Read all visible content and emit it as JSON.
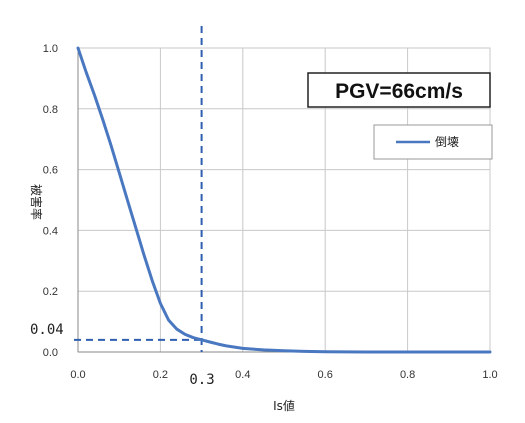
{
  "chart_data": {
    "type": "line",
    "title": "",
    "xlabel": "Is値",
    "ylabel": "被害率",
    "xlim": [
      0.0,
      1.0
    ],
    "ylim": [
      0.0,
      1.0
    ],
    "x_ticks": [
      "0.0",
      "0.2",
      "0.4",
      "0.6",
      "0.8",
      "1.0"
    ],
    "y_ticks": [
      "0.0",
      "0.2",
      "0.4",
      "0.6",
      "0.8",
      "1.0"
    ],
    "grid": true,
    "legend_position": "top-right",
    "series": [
      {
        "name": "倒壊",
        "color": "#4a78c0",
        "x": [
          0.0,
          0.02,
          0.04,
          0.06,
          0.08,
          0.1,
          0.12,
          0.14,
          0.16,
          0.18,
          0.2,
          0.22,
          0.24,
          0.26,
          0.28,
          0.3,
          0.32,
          0.34,
          0.36,
          0.38,
          0.4,
          0.45,
          0.5,
          0.55,
          0.6,
          0.7,
          0.8,
          0.9,
          1.0
        ],
        "y": [
          1.0,
          0.92,
          0.845,
          0.765,
          0.68,
          0.59,
          0.5,
          0.41,
          0.32,
          0.235,
          0.16,
          0.105,
          0.075,
          0.058,
          0.047,
          0.04,
          0.033,
          0.026,
          0.02,
          0.016,
          0.012,
          0.007,
          0.004,
          0.002,
          0.001,
          0.0,
          0.0,
          0.0,
          0.0
        ]
      }
    ],
    "annotations": {
      "box_label": "PGV=66cm/s",
      "guide_x_label": "0.3",
      "guide_x_value": 0.3,
      "guide_y_label": "0.04",
      "guide_y_value": 0.04,
      "guide_color": "#2f5fb0"
    }
  }
}
